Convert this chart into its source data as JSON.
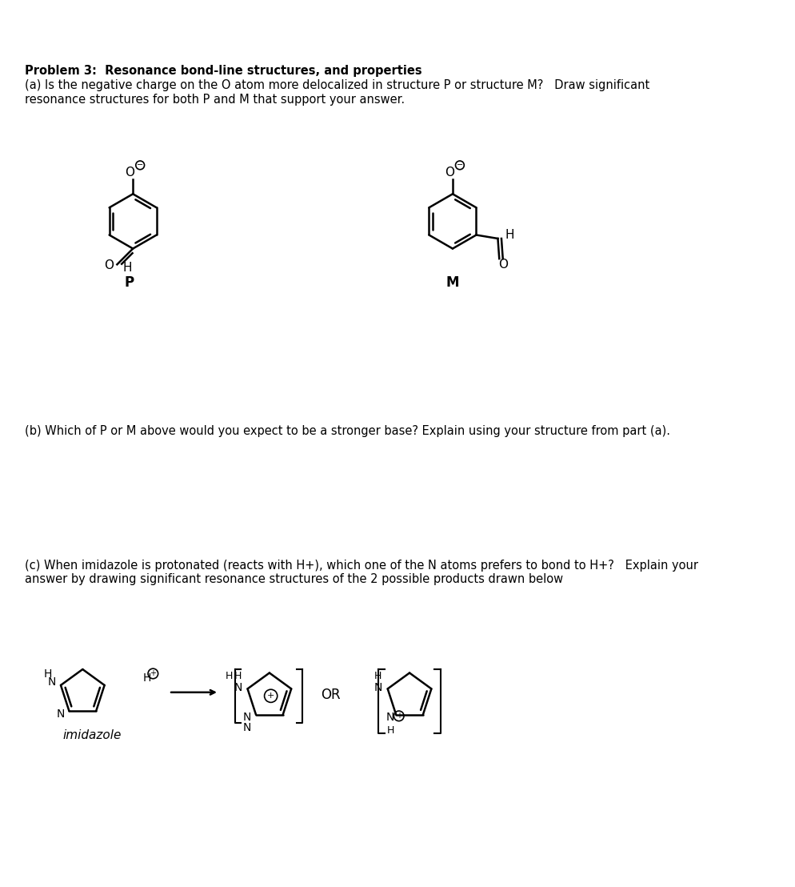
{
  "title_bold": "Problem 3:  Resonance bond-line structures, and properties",
  "part_a_text": "(a) Is the negative charge on the O atom more delocalized in structure P or structure M?   Draw significant\nresonance structures for both P and M that support your answer.",
  "part_b_text": "(b) Which of P or M above would you expect to be a stronger base? Explain using your structure from part (a).",
  "part_c_text": "(c) When imidazole is protonated (reacts with H+), which one of the N atoms prefers to bond to H+?   Explain your\nanswer by drawing significant resonance structures of the 2 possible products drawn below",
  "label_P": "P",
  "label_M": "M",
  "label_imidazole": "imidazole",
  "label_OR": "OR",
  "bg_color": "#ffffff",
  "text_color": "#000000",
  "font_size_main": 10.5,
  "font_size_label": 11
}
